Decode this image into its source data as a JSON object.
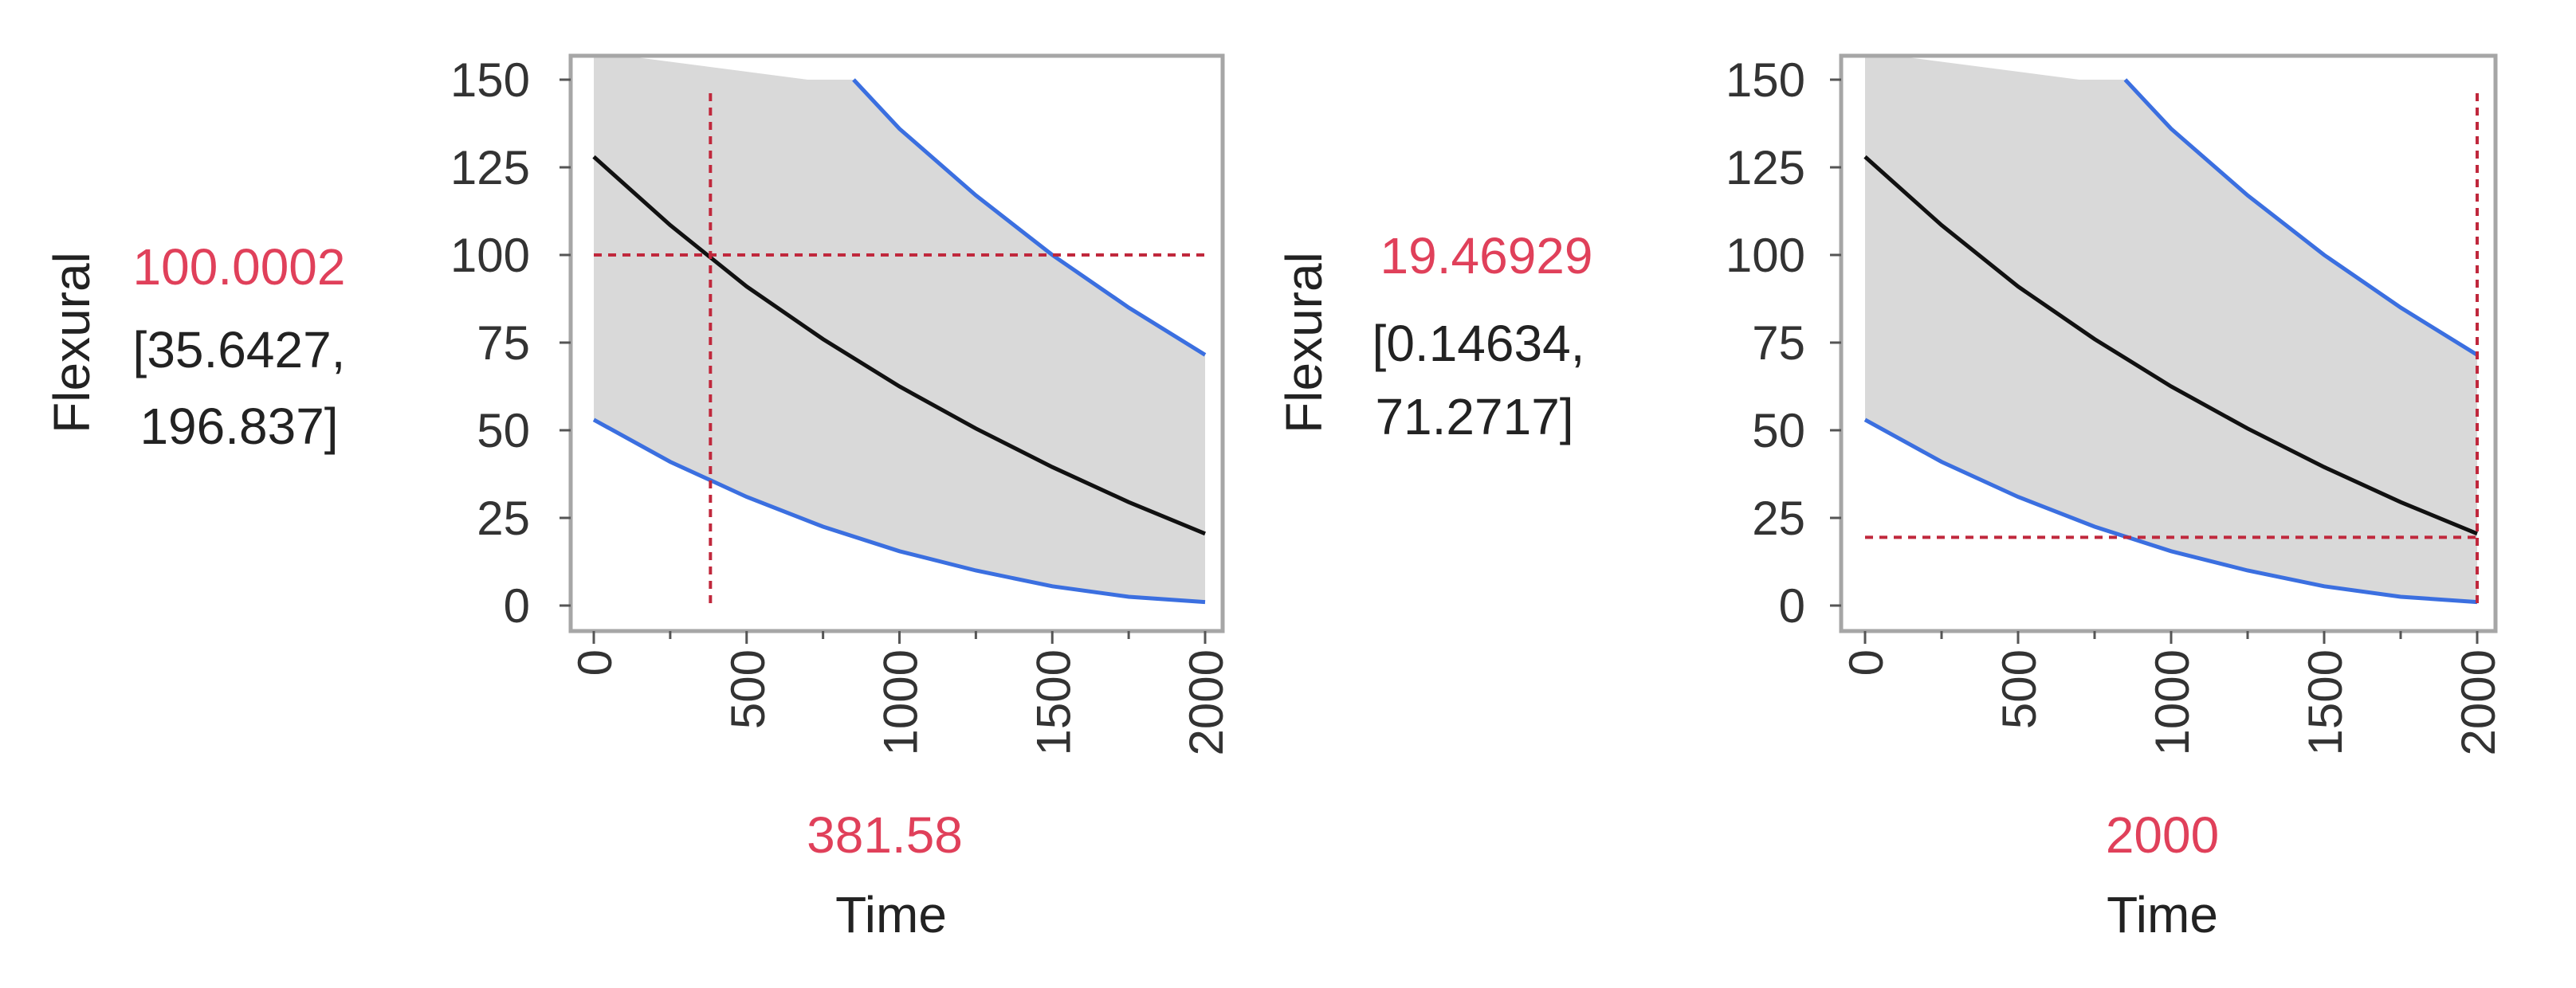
{
  "colors": {
    "band": "#d9d9d9",
    "prediction": "#111111",
    "confidence_bounds": "#3b6fe0",
    "crosshair": "#c0283c",
    "readout": "#e0405a",
    "frame": "#a6a6a6"
  },
  "chart_data": [
    {
      "type": "line",
      "ylabel": "Flexural",
      "xlabel": "Time",
      "xlim": [
        0,
        2000
      ],
      "ylim": [
        0,
        150
      ],
      "xticks": [
        "0",
        "500",
        "1000",
        "1500",
        "2000"
      ],
      "yticks": [
        "0",
        "25",
        "50",
        "75",
        "100",
        "125",
        "150"
      ],
      "grid": false,
      "shaded_band": true,
      "crosshair": {
        "x": 381.58,
        "y": 100.0002
      },
      "readout": {
        "y_value": "100.0002",
        "ci_line1": "[35.6427,",
        "ci_line2": "196.837]",
        "x_value": "381.58"
      },
      "series": [
        {
          "role": "prediction",
          "x": [
            0,
            250,
            500,
            750,
            1000,
            1250,
            1500,
            1750,
            2000
          ],
          "y": [
            128,
            108.5,
            91,
            76,
            62.5,
            50.5,
            39.5,
            29.5,
            20.5
          ]
        },
        {
          "role": "lower",
          "x": [
            0,
            250,
            500,
            750,
            1000,
            1250,
            1500,
            1750,
            2000
          ],
          "y": [
            53,
            41,
            31,
            22.5,
            15.5,
            10,
            5.5,
            2.5,
            1
          ]
        },
        {
          "role": "upper",
          "x": [
            850,
            1000,
            1250,
            1500,
            1750,
            2000
          ],
          "y": [
            150,
            136,
            117,
            100,
            85,
            71.5
          ]
        },
        {
          "role": "band_upper",
          "x": [
            0,
            700,
            850,
            1000,
            1250,
            1500,
            1750,
            2000
          ],
          "y": [
            150,
            150,
            150,
            136,
            117,
            100,
            85,
            71.5
          ]
        }
      ]
    },
    {
      "type": "line",
      "ylabel": "Flexural",
      "xlabel": "Time",
      "xlim": [
        0,
        2000
      ],
      "ylim": [
        0,
        150
      ],
      "xticks": [
        "0",
        "500",
        "1000",
        "1500",
        "2000"
      ],
      "yticks": [
        "0",
        "25",
        "50",
        "75",
        "100",
        "125",
        "150"
      ],
      "grid": false,
      "shaded_band": true,
      "crosshair": {
        "x": 2000,
        "y": 19.46929
      },
      "readout": {
        "y_value": "19.46929",
        "ci_line1": "[0.14634,",
        "ci_line2": "71.2717]",
        "x_value": "2000"
      },
      "series": [
        {
          "role": "prediction",
          "x": [
            0,
            250,
            500,
            750,
            1000,
            1250,
            1500,
            1750,
            2000
          ],
          "y": [
            128,
            108.5,
            91,
            76,
            62.5,
            50.5,
            39.5,
            29.5,
            20.5
          ]
        },
        {
          "role": "lower",
          "x": [
            0,
            250,
            500,
            750,
            1000,
            1250,
            1500,
            1750,
            2000
          ],
          "y": [
            53,
            41,
            31,
            22.5,
            15.5,
            10,
            5.5,
            2.5,
            1
          ]
        },
        {
          "role": "upper",
          "x": [
            850,
            1000,
            1250,
            1500,
            1750,
            2000
          ],
          "y": [
            150,
            136,
            117,
            100,
            85,
            71.5
          ]
        },
        {
          "role": "band_upper",
          "x": [
            0,
            700,
            850,
            1000,
            1250,
            1500,
            1750,
            2000
          ],
          "y": [
            150,
            150,
            150,
            136,
            117,
            100,
            85,
            71.5
          ]
        }
      ]
    }
  ]
}
